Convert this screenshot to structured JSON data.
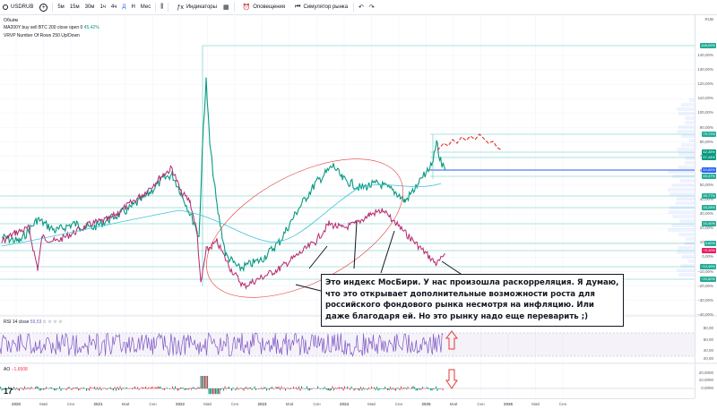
{
  "toolbar": {
    "symbol": "USDRUB",
    "timeframes": [
      "5м",
      "15м",
      "30м",
      "1ч",
      "4ч",
      "Д",
      "Н",
      "Мес"
    ],
    "active_timeframe": "Д",
    "indicators_label": "Индикаторы",
    "alerts_label": "Оповещения",
    "replay_label": "Симулятор рынка"
  },
  "legend": {
    "volume": "Объём",
    "ma_line": "MA200Y buy sell BTC 200 close open 0",
    "ma_value": "45,42%",
    "vrvp": "VRVP Number Of Rows 250 Up/Down"
  },
  "rsi": {
    "label": "RSI 14 close",
    "value": "59,53"
  },
  "ao": {
    "label": "AO",
    "value": "−1,6508"
  },
  "scale": {
    "currency": "RUB",
    "ticks": [
      "140,00%",
      "130,00%",
      "120,00%",
      "110,00%",
      "100,00%",
      "90,00%",
      "80,00%",
      "70,00%",
      "60,00%",
      "50,00%",
      "40,00%",
      "30,00%",
      "20,00%",
      "10,00%",
      "0,00%",
      "−10,00%",
      "−20,00%",
      "−30,00%",
      "−40,00%"
    ],
    "badges": [
      {
        "text": "148,09%",
        "color": "#22ab94"
      },
      {
        "text": "79,72%",
        "color": "#22ab94"
      },
      {
        "text": "62,38%",
        "color": "#089981"
      },
      {
        "text": "57,44%",
        "color": "#089981"
      },
      {
        "text": "54,86%",
        "color": "#2962ff"
      },
      {
        "text": "49,47%",
        "color": "#22ab94"
      },
      {
        "text": "39,77%",
        "color": "#22ab94"
      },
      {
        "text": "33,28%",
        "color": "#22ab94"
      },
      {
        "text": "16,40%",
        "color": "#22ab94"
      },
      {
        "text": "3,60%",
        "color": "#22ab94"
      },
      {
        "text": "−0,10%",
        "color": "#e91e63"
      },
      {
        "text": "−12,49%",
        "color": "#22ab94"
      },
      {
        "text": "−20,60%",
        "color": "#22ab94"
      }
    ],
    "rsi_ticks": [
      "80,00",
      "60,00",
      "40,00",
      "20,00"
    ],
    "ao_ticks": [
      "20,0000",
      "10,0000",
      "0,0000"
    ]
  },
  "dates": [
    "2020",
    "Май",
    "Сен",
    "2021",
    "Май",
    "Сен",
    "2022",
    "Май",
    "Сен",
    "2023",
    "Май",
    "Сен",
    "2024",
    "Май",
    "Сен",
    "2025",
    "Май",
    "Сен",
    "2026",
    "Май",
    "Сен"
  ],
  "annotation": {
    "text": "Это индекс МосБири. У нас произошла раскорреляция. Я думаю, что это открывает дополнительные возможности роста для российского фондового рынка несмотря на инфляцию. Или даже благодаря ей. Но это рынку надо еще переварить ;)"
  },
  "colors": {
    "usdrub": "#089981",
    "moex": "#b5286e",
    "ma": "#40c4d8",
    "ellipse": "#e53935",
    "forecast": "#e53935",
    "arrow": "#e53935"
  }
}
